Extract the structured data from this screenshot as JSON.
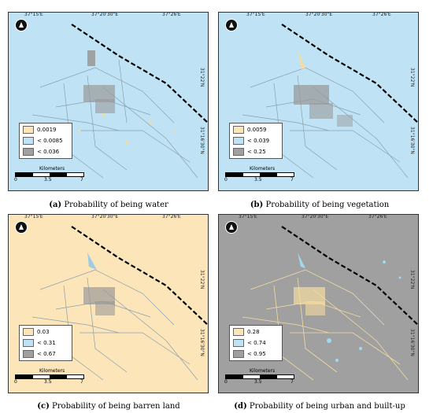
{
  "coords": {
    "top": [
      "37°15'E",
      "37°20'30\"E",
      "37°26'E"
    ],
    "right": [
      "31°22'N",
      "31°16'30\"N"
    ]
  },
  "scale": {
    "title": "Kilometers",
    "ticks": [
      "0",
      "3.5",
      "7"
    ]
  },
  "colors": {
    "water_bg": "#bfe3f5",
    "barren_bg": "#fce5b8",
    "urban_bg": "#a0a0a0",
    "swatch_low": "#fce5b8",
    "swatch_mid": "#bfe3f5",
    "swatch_high": "#a0a0a0",
    "road": "#8aa0b0",
    "rail": "#000000"
  },
  "panels": [
    {
      "caption_letter": "(a)",
      "caption_text": " Probability of being water",
      "legend": [
        "0.0019",
        "< 0.0085",
        "< 0.036"
      ]
    },
    {
      "caption_letter": "(b)",
      "caption_text": " Probability of being vegetation",
      "legend": [
        "0.0059",
        "< 0.039",
        "< 0.25"
      ]
    },
    {
      "caption_letter": "(c)",
      "caption_text": " Probability of being barren land",
      "legend": [
        "0.03",
        "< 0.31",
        "< 0.67"
      ]
    },
    {
      "caption_letter": "(d)",
      "caption_text": " Probability of being urban and built-up",
      "legend": [
        "0.28",
        "< 0.74",
        "< 0.95"
      ]
    }
  ]
}
